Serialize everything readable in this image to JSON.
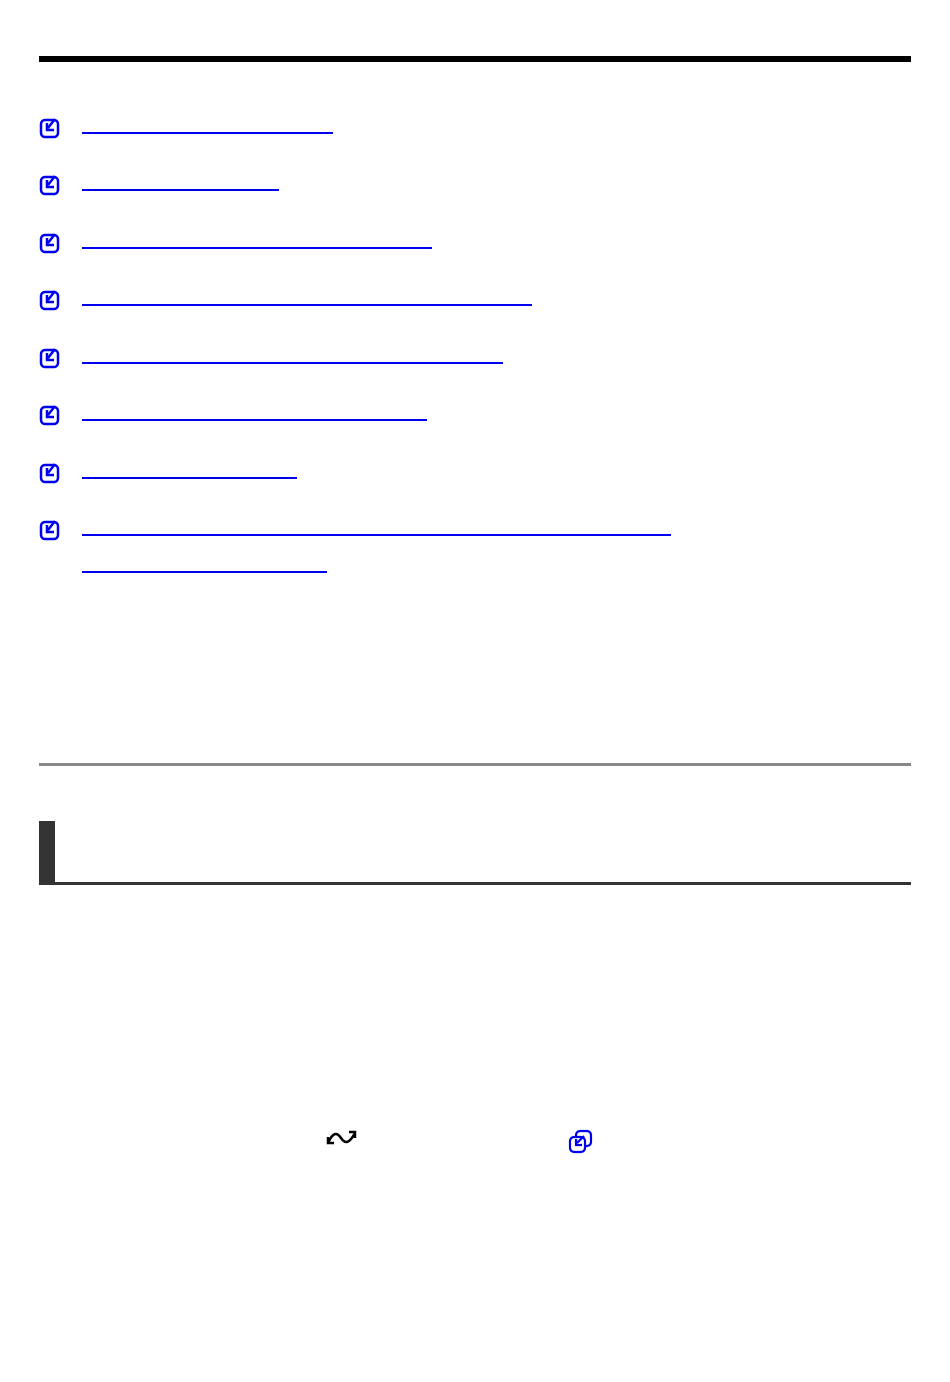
{
  "colors": {
    "link": "#0000ee",
    "rule": "#000000",
    "section_bar": "#333333"
  },
  "icons": {
    "list_item": "check-square-arrow-icon",
    "inline_1": "wave-arrows-icon",
    "inline_2": "external-copy-icon"
  },
  "links": [
    {
      "text": ""
    },
    {
      "text": ""
    },
    {
      "text": ""
    },
    {
      "text": ""
    },
    {
      "text": ""
    },
    {
      "text": ""
    },
    {
      "text": ""
    },
    {
      "text": ""
    }
  ]
}
